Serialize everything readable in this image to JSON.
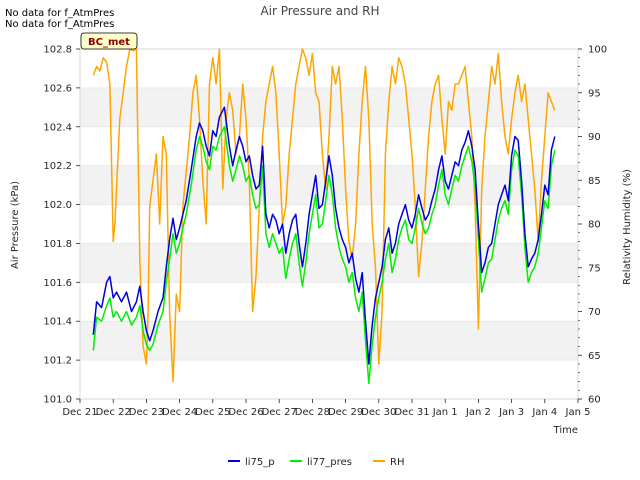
{
  "notices": [
    "No data for f_AtmPres",
    "No data for f_AtmPres"
  ],
  "badge": "BC_met",
  "colors": {
    "li75_p": "#0000dd",
    "li77_pres": "#00ee00",
    "RH": "#ffa500",
    "band": "#f2f2f2",
    "badge_bg": "#ffffcc"
  },
  "chart_data": {
    "type": "line",
    "title": "Air Pressure and RH",
    "xlabel": "Time",
    "ylabel": "Air Pressure (kPa)",
    "y2label": "Relativity Humidity (%)",
    "xlim": [
      0,
      15
    ],
    "ylim": [
      101.0,
      102.8
    ],
    "y2lim": [
      60,
      100
    ],
    "x_ticks": [
      0,
      1,
      2,
      3,
      4,
      5,
      6,
      7,
      8,
      9,
      10,
      11,
      12,
      13,
      14,
      15
    ],
    "x_tick_labels": [
      "Dec 21",
      "Dec 22",
      "Dec 23",
      "Dec 24",
      "Dec 25",
      "Dec 26",
      "Dec 27",
      "Dec 28",
      "Dec 29",
      "Dec 30",
      "Dec 31",
      "Jan 1",
      "Jan 2",
      "Jan 3",
      "Jan 4",
      "Jan 5"
    ],
    "y_ticks": [
      101.0,
      101.2,
      101.4,
      101.6,
      101.8,
      102.0,
      102.2,
      102.4,
      102.6,
      102.8
    ],
    "y_tick_labels": [
      "101.0",
      "101.2",
      "101.4",
      "101.6",
      "101.8",
      "102.0",
      "102.2",
      "102.4",
      "102.6",
      "102.8"
    ],
    "y2_ticks": [
      60,
      65,
      70,
      75,
      80,
      85,
      90,
      95,
      100
    ],
    "y2_tick_labels": [
      "60",
      "65",
      "70",
      "75",
      "80",
      "85",
      "90",
      "95",
      "100"
    ],
    "legend": {
      "placement": "bottom-center",
      "entries": [
        "li75_p",
        "li77_pres",
        "RH"
      ]
    },
    "series": [
      {
        "name": "li75_p",
        "axis": "left",
        "x": [
          0.4,
          0.5,
          0.65,
          0.8,
          0.9,
          1.0,
          1.1,
          1.25,
          1.4,
          1.55,
          1.7,
          1.8,
          1.9,
          2.0,
          2.1,
          2.2,
          2.35,
          2.5,
          2.6,
          2.7,
          2.8,
          2.9,
          3.0,
          3.1,
          3.2,
          3.35,
          3.5,
          3.6,
          3.7,
          3.8,
          3.9,
          4.0,
          4.1,
          4.2,
          4.35,
          4.5,
          4.6,
          4.7,
          4.8,
          4.9,
          5.0,
          5.1,
          5.2,
          5.3,
          5.4,
          5.5,
          5.6,
          5.7,
          5.8,
          5.9,
          6.0,
          6.1,
          6.2,
          6.3,
          6.4,
          6.5,
          6.6,
          6.7,
          6.8,
          6.9,
          7.0,
          7.1,
          7.2,
          7.3,
          7.4,
          7.5,
          7.6,
          7.7,
          7.8,
          7.9,
          8.0,
          8.1,
          8.2,
          8.3,
          8.4,
          8.5,
          8.6,
          8.7,
          8.8,
          8.9,
          9.0,
          9.1,
          9.2,
          9.3,
          9.4,
          9.5,
          9.6,
          9.7,
          9.8,
          9.9,
          10.0,
          10.1,
          10.2,
          10.3,
          10.4,
          10.5,
          10.6,
          10.7,
          10.8,
          10.9,
          11.0,
          11.1,
          11.2,
          11.3,
          11.4,
          11.5,
          11.6,
          11.7,
          11.8,
          11.9,
          12.0,
          12.1,
          12.2,
          12.3,
          12.4,
          12.5,
          12.6,
          12.7,
          12.8,
          12.9,
          13.0,
          13.1,
          13.2,
          13.3,
          13.4,
          13.5,
          13.6,
          13.7,
          13.8,
          13.9,
          14.0,
          14.1,
          14.2,
          14.3
        ],
        "values": [
          101.33,
          101.5,
          101.47,
          101.6,
          101.63,
          101.52,
          101.55,
          101.5,
          101.55,
          101.45,
          101.5,
          101.58,
          101.45,
          101.35,
          101.3,
          101.35,
          101.45,
          101.52,
          101.68,
          101.82,
          101.93,
          101.82,
          101.88,
          101.95,
          102.02,
          102.18,
          102.35,
          102.42,
          102.38,
          102.3,
          102.25,
          102.38,
          102.35,
          102.45,
          102.5,
          102.3,
          102.2,
          102.28,
          102.35,
          102.3,
          102.22,
          102.25,
          102.15,
          102.08,
          102.1,
          102.3,
          101.95,
          101.88,
          101.95,
          101.92,
          101.85,
          101.9,
          101.75,
          101.85,
          101.92,
          101.95,
          101.8,
          101.68,
          101.8,
          101.95,
          102.05,
          102.15,
          101.98,
          102.0,
          102.12,
          102.25,
          102.15,
          101.98,
          101.88,
          101.82,
          101.78,
          101.7,
          101.75,
          101.62,
          101.55,
          101.65,
          101.4,
          101.18,
          101.38,
          101.52,
          101.6,
          101.68,
          101.82,
          101.88,
          101.75,
          101.8,
          101.9,
          101.95,
          102.0,
          101.92,
          101.88,
          101.95,
          102.05,
          101.98,
          101.92,
          101.95,
          102.02,
          102.08,
          102.18,
          102.25,
          102.12,
          102.08,
          102.15,
          102.22,
          102.2,
          102.28,
          102.32,
          102.38,
          102.3,
          102.18,
          101.9,
          101.65,
          101.7,
          101.78,
          101.8,
          101.9,
          102.0,
          102.05,
          102.1,
          102.02,
          102.25,
          102.35,
          102.33,
          102.12,
          101.85,
          101.68,
          101.72,
          101.75,
          101.82,
          101.95,
          102.1,
          102.05,
          102.28,
          102.35
        ]
      },
      {
        "name": "li77_pres",
        "axis": "left",
        "x": [
          0.4,
          0.5,
          0.65,
          0.8,
          0.9,
          1.0,
          1.1,
          1.25,
          1.4,
          1.55,
          1.7,
          1.8,
          1.9,
          2.0,
          2.1,
          2.2,
          2.35,
          2.5,
          2.6,
          2.7,
          2.8,
          2.9,
          3.0,
          3.1,
          3.2,
          3.35,
          3.5,
          3.6,
          3.7,
          3.8,
          3.9,
          4.0,
          4.1,
          4.2,
          4.35,
          4.5,
          4.6,
          4.7,
          4.8,
          4.9,
          5.0,
          5.1,
          5.2,
          5.3,
          5.4,
          5.5,
          5.6,
          5.7,
          5.8,
          5.9,
          6.0,
          6.1,
          6.2,
          6.3,
          6.4,
          6.5,
          6.6,
          6.7,
          6.8,
          6.9,
          7.0,
          7.1,
          7.2,
          7.3,
          7.4,
          7.5,
          7.6,
          7.7,
          7.8,
          7.9,
          8.0,
          8.1,
          8.2,
          8.3,
          8.4,
          8.5,
          8.6,
          8.7,
          8.8,
          8.9,
          9.0,
          9.1,
          9.2,
          9.3,
          9.4,
          9.5,
          9.6,
          9.7,
          9.8,
          9.9,
          10.0,
          10.1,
          10.2,
          10.3,
          10.4,
          10.5,
          10.6,
          10.7,
          10.8,
          10.9,
          11.0,
          11.1,
          11.2,
          11.3,
          11.4,
          11.5,
          11.6,
          11.7,
          11.8,
          11.9,
          12.0,
          12.1,
          12.2,
          12.3,
          12.4,
          12.5,
          12.6,
          12.7,
          12.8,
          12.9,
          13.0,
          13.1,
          13.2,
          13.3,
          13.4,
          13.5,
          13.6,
          13.7,
          13.8,
          13.9,
          14.0,
          14.1,
          14.2,
          14.3
        ],
        "values": [
          101.25,
          101.42,
          101.4,
          101.48,
          101.52,
          101.42,
          101.45,
          101.4,
          101.45,
          101.38,
          101.42,
          101.48,
          101.35,
          101.28,
          101.25,
          101.28,
          101.38,
          101.45,
          101.6,
          101.72,
          101.85,
          101.75,
          101.8,
          101.88,
          101.95,
          102.1,
          102.28,
          102.35,
          102.3,
          102.22,
          102.18,
          102.3,
          102.28,
          102.35,
          102.4,
          102.2,
          102.12,
          102.18,
          102.25,
          102.2,
          102.12,
          102.15,
          102.05,
          101.98,
          102.0,
          102.2,
          101.85,
          101.78,
          101.85,
          101.8,
          101.75,
          101.78,
          101.62,
          101.72,
          101.8,
          101.85,
          101.7,
          101.58,
          101.7,
          101.85,
          101.95,
          102.05,
          101.88,
          101.9,
          102.02,
          102.15,
          102.05,
          101.88,
          101.78,
          101.72,
          101.68,
          101.6,
          101.65,
          101.52,
          101.45,
          101.55,
          101.3,
          101.08,
          101.28,
          101.42,
          101.52,
          101.6,
          101.72,
          101.8,
          101.65,
          101.72,
          101.82,
          101.88,
          101.92,
          101.82,
          101.8,
          101.88,
          101.98,
          101.9,
          101.85,
          101.88,
          101.95,
          102.0,
          102.1,
          102.18,
          102.05,
          102.0,
          102.08,
          102.15,
          102.12,
          102.2,
          102.25,
          102.3,
          102.22,
          102.1,
          101.82,
          101.55,
          101.62,
          101.7,
          101.72,
          101.82,
          101.92,
          101.98,
          102.02,
          101.95,
          102.18,
          102.28,
          102.25,
          102.05,
          101.78,
          101.6,
          101.65,
          101.68,
          101.75,
          101.88,
          102.02,
          101.98,
          102.2,
          102.28
        ]
      },
      {
        "name": "RH",
        "axis": "right",
        "x": [
          0.4,
          0.5,
          0.6,
          0.7,
          0.8,
          0.9,
          1.0,
          1.05,
          1.1,
          1.2,
          1.3,
          1.4,
          1.5,
          1.6,
          1.7,
          1.8,
          1.9,
          2.0,
          2.05,
          2.1,
          2.2,
          2.3,
          2.4,
          2.5,
          2.6,
          2.7,
          2.75,
          2.8,
          2.9,
          3.0,
          3.1,
          3.2,
          3.3,
          3.4,
          3.5,
          3.6,
          3.7,
          3.8,
          3.9,
          4.0,
          4.1,
          4.2,
          4.3,
          4.4,
          4.5,
          4.6,
          4.7,
          4.8,
          4.9,
          5.0,
          5.1,
          5.2,
          5.3,
          5.4,
          5.5,
          5.6,
          5.7,
          5.8,
          5.9,
          6.0,
          6.1,
          6.2,
          6.3,
          6.4,
          6.5,
          6.6,
          6.7,
          6.8,
          6.9,
          7.0,
          7.1,
          7.2,
          7.3,
          7.4,
          7.5,
          7.6,
          7.7,
          7.8,
          7.9,
          8.0,
          8.1,
          8.2,
          8.3,
          8.4,
          8.5,
          8.6,
          8.7,
          8.8,
          8.9,
          9.0,
          9.1,
          9.2,
          9.3,
          9.4,
          9.5,
          9.6,
          9.7,
          9.8,
          9.9,
          10.0,
          10.1,
          10.2,
          10.3,
          10.4,
          10.5,
          10.6,
          10.7,
          10.8,
          10.9,
          11.0,
          11.1,
          11.2,
          11.3,
          11.4,
          11.5,
          11.6,
          11.7,
          11.8,
          11.9,
          12.0,
          12.1,
          12.2,
          12.3,
          12.4,
          12.5,
          12.6,
          12.7,
          12.8,
          12.9,
          13.0,
          13.1,
          13.2,
          13.3,
          13.4,
          13.5,
          13.6,
          13.7,
          13.8,
          13.9,
          14.0,
          14.1,
          14.2,
          14.3
        ],
        "values": [
          97,
          98,
          97.5,
          99,
          98.5,
          96,
          78,
          80,
          84,
          92,
          95,
          98,
          100,
          99.8,
          100,
          76,
          66,
          64,
          70,
          82,
          85,
          88,
          80,
          90,
          88,
          70,
          66,
          62,
          72,
          70,
          82,
          86,
          90,
          95,
          97,
          92,
          85,
          80,
          96,
          99,
          96,
          100,
          84,
          92,
          95,
          93,
          88,
          90,
          96,
          92,
          85,
          70,
          74,
          82,
          90,
          94,
          96,
          98,
          95,
          88,
          80,
          82,
          88,
          92,
          96,
          98,
          100,
          99,
          97,
          99.5,
          95,
          94,
          88,
          84,
          90,
          98,
          96,
          98,
          92,
          84,
          78,
          76,
          80,
          88,
          94,
          98,
          92,
          80,
          75,
          64,
          70,
          88,
          94,
          98,
          96,
          99,
          98,
          96,
          92,
          88,
          82,
          74,
          78,
          84,
          90,
          94,
          96,
          97,
          92,
          88,
          94,
          93,
          96,
          96,
          97,
          98,
          94,
          90,
          82,
          68,
          84,
          90,
          94,
          98,
          96,
          99.5,
          94,
          90,
          88,
          92,
          95,
          97,
          94,
          96,
          92,
          88,
          84,
          78,
          85,
          90,
          95,
          94,
          93
        ]
      }
    ]
  }
}
